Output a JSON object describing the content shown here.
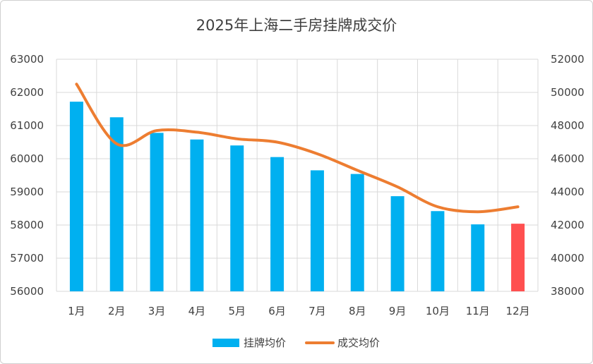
{
  "chart_data": {
    "type": "bar+line",
    "title": "2025年上海二手房挂牌成交价",
    "categories": [
      "1月",
      "2月",
      "3月",
      "4月",
      "5月",
      "6月",
      "7月",
      "8月",
      "9月",
      "10月",
      "11月",
      "12月"
    ],
    "series": [
      {
        "name": "挂牌均价",
        "type": "bar",
        "axis": "left",
        "color": "#00b0f0",
        "highlight_color": "#ff5050",
        "highlight_index": 11,
        "values": [
          61720,
          61250,
          60780,
          60580,
          60400,
          60050,
          59650,
          59540,
          58870,
          58420,
          58020,
          58040
        ]
      },
      {
        "name": "成交均价",
        "type": "line",
        "axis": "right",
        "color": "#ed7d31",
        "smooth": true,
        "values": [
          50500,
          46900,
          47700,
          47600,
          47200,
          47000,
          46300,
          45300,
          44300,
          43100,
          42800,
          43100
        ]
      }
    ],
    "y_left": {
      "min": 56000,
      "max": 63000,
      "step": 1000,
      "ticks": [
        "56000",
        "57000",
        "58000",
        "59000",
        "60000",
        "61000",
        "62000",
        "63000"
      ]
    },
    "y_right": {
      "min": 38000,
      "max": 52000,
      "step": 2000,
      "ticks": [
        "38000",
        "40000",
        "42000",
        "44000",
        "46000",
        "48000",
        "50000",
        "52000"
      ]
    },
    "grid": true,
    "legend": "bottom-center"
  }
}
